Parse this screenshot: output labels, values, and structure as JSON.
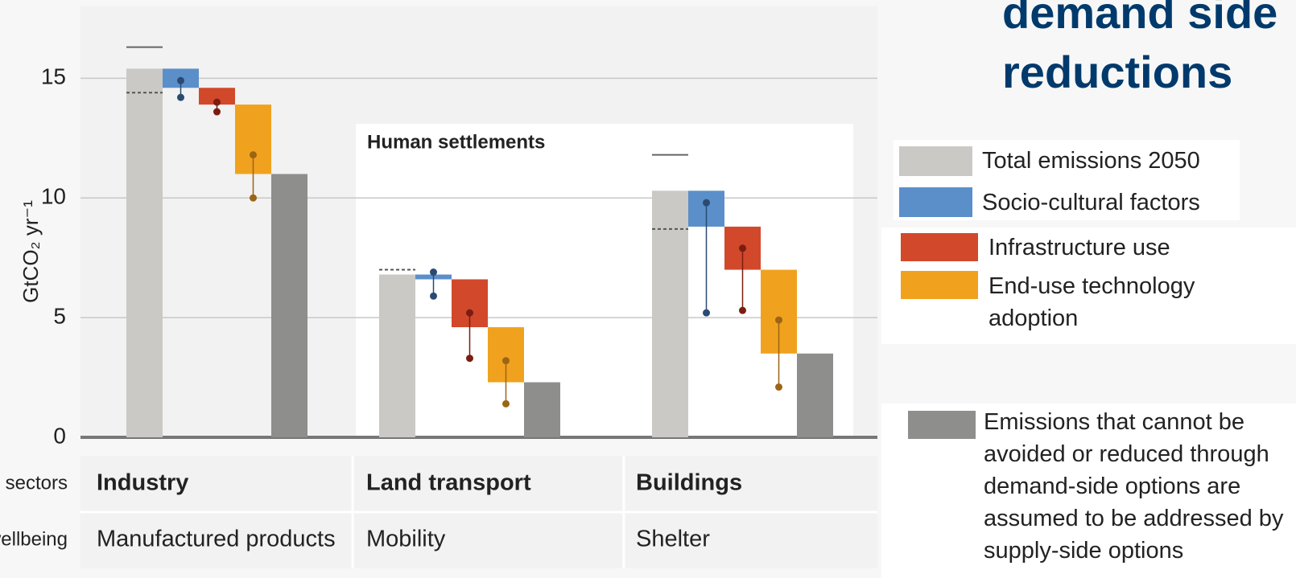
{
  "chart_data": {
    "type": "waterfall",
    "title_lines": [
      "demand side",
      "reductions"
    ],
    "y_label": "GtCO₂ yr⁻¹",
    "ylim": [
      0,
      18
    ],
    "yticks": [
      0,
      5,
      10,
      15
    ],
    "grid": true,
    "panel_label": "Human settlements",
    "row_labels": [
      "End-use sectors",
      "Services for wellbeing"
    ],
    "legend": [
      {
        "name": "Total emissions 2050",
        "color": "#cbc9c5"
      },
      {
        "name": "Socio-cultural factors",
        "color": "#5b8fca"
      },
      {
        "name": "Infrastructure use",
        "color": "#d2482b"
      },
      {
        "name": "End-use technology adoption",
        "color": "#f0a21e"
      },
      {
        "name": "Emissions that cannot be avoided or reduced through demand-side options are assumed to be addressed by supply-side options",
        "color": "#8e8e8c"
      }
    ],
    "groups": [
      {
        "sector": "Industry",
        "service": "Manufactured products",
        "total": 15.4,
        "upper": 16.3,
        "dashed": 14.4,
        "steps": [
          {
            "value": 0.8,
            "range": [
              14.9,
              14.2
            ]
          },
          {
            "value": 0.7,
            "range": [
              14.0,
              13.6
            ]
          },
          {
            "value": 2.9,
            "range": [
              11.8,
              10.0
            ]
          }
        ],
        "remaining": 11.0
      },
      {
        "sector": "Land transport",
        "service": "Mobility",
        "total": 6.8,
        "upper": null,
        "dashed": 7.0,
        "steps": [
          {
            "value": 0.2,
            "range": [
              6.9,
              5.9
            ]
          },
          {
            "value": 2.0,
            "range": [
              5.2,
              3.3
            ]
          },
          {
            "value": 2.3,
            "range": [
              3.2,
              1.4
            ]
          }
        ],
        "remaining": 2.3
      },
      {
        "sector": "Buildings",
        "service": "Shelter",
        "total": 10.3,
        "upper": 11.8,
        "dashed": 8.7,
        "steps": [
          {
            "value": 1.5,
            "range": [
              9.8,
              5.2
            ]
          },
          {
            "value": 1.8,
            "range": [
              7.9,
              5.3
            ]
          },
          {
            "value": 3.5,
            "range": [
              4.9,
              2.1
            ]
          }
        ],
        "remaining": 3.5
      }
    ]
  }
}
